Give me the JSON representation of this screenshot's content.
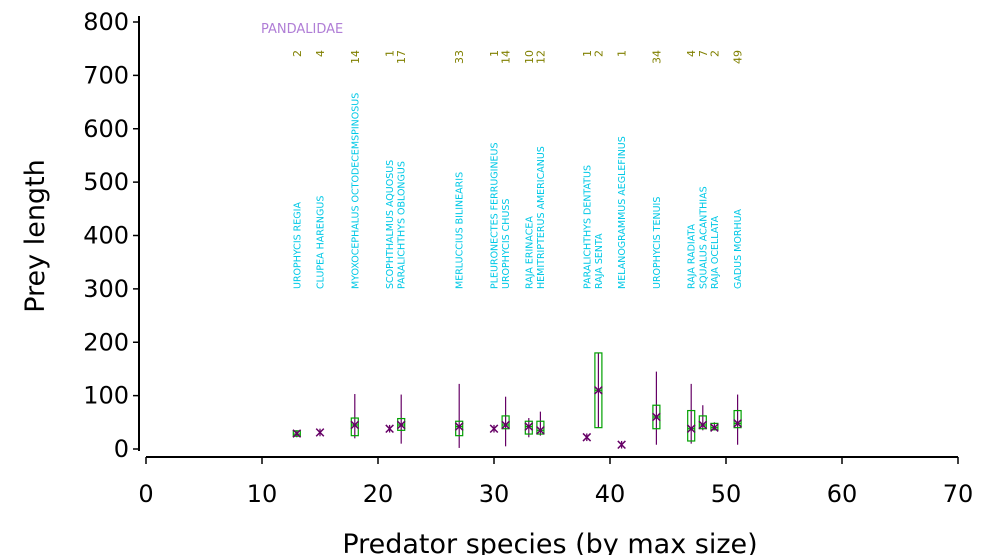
{
  "chart_data": {
    "type": "boxplot",
    "title": "PANDALIDAE",
    "xlabel": "Predator species (by max size)",
    "ylabel": "Prey length",
    "xlim": [
      0,
      70
    ],
    "ylim": [
      0,
      800
    ],
    "xticks": [
      0,
      10,
      20,
      30,
      40,
      50,
      60,
      70
    ],
    "yticks": [
      0,
      100,
      200,
      300,
      400,
      500,
      600,
      700,
      800
    ],
    "grid": false,
    "colors": {
      "box": "#00a000",
      "whisker": "#660066",
      "mean": "#660066",
      "species_label": "#00c8e6",
      "count_label": "#808000",
      "title": "#b07ed6",
      "axis": "#000000"
    },
    "species": [
      {
        "x": 13,
        "name": "UROPHYCIS REGIA",
        "n": "2",
        "low": 22,
        "q1": 24,
        "median": 28,
        "q3": 34,
        "high": 35,
        "mean": 29,
        "box": true
      },
      {
        "x": 15,
        "name": "CLUPEA HARENGUS",
        "n": "4",
        "low": 28,
        "q1": 28,
        "median": 31,
        "q3": 33,
        "high": 34,
        "mean": 31,
        "box": false
      },
      {
        "x": 18,
        "name": "MYOXOCEPHALUS OCTODECEMSPINOSUS",
        "n": "14",
        "low": 20,
        "q1": 25,
        "median": 45,
        "q3": 58,
        "high": 103,
        "mean": 45,
        "box": true
      },
      {
        "x": 21,
        "name": "SCOPHTHALMUS AQUOSUS",
        "n": "1",
        "low": 38,
        "q1": 38,
        "median": 38,
        "q3": 38,
        "high": 38,
        "mean": 38,
        "box": false
      },
      {
        "x": 22,
        "name": "PARALICHTHYS OBLONGUS",
        "n": "17",
        "low": 10,
        "q1": 35,
        "median": 45,
        "q3": 57,
        "high": 102,
        "mean": 45,
        "box": true
      },
      {
        "x": 27,
        "name": "MERLUCCIUS BILINEARIS",
        "n": "33",
        "low": 2,
        "q1": 25,
        "median": 42,
        "q3": 52,
        "high": 122,
        "mean": 42,
        "box": true
      },
      {
        "x": 30,
        "name": "PLEURONECTES FERRUGINEUS",
        "n": "1",
        "low": 38,
        "q1": 38,
        "median": 38,
        "q3": 38,
        "high": 38,
        "mean": 38,
        "box": false
      },
      {
        "x": 31,
        "name": "UROPHYCIS CHUSS",
        "n": "14",
        "low": 5,
        "q1": 38,
        "median": 45,
        "q3": 62,
        "high": 98,
        "mean": 45,
        "box": true
      },
      {
        "x": 33,
        "name": "RAJA ERINACEA",
        "n": "10",
        "low": 22,
        "q1": 28,
        "median": 42,
        "q3": 52,
        "high": 58,
        "mean": 42,
        "box": true
      },
      {
        "x": 34,
        "name": "HEMITRIPTERUS AMERICANUS",
        "n": "12",
        "low": 25,
        "q1": 28,
        "median": 35,
        "q3": 52,
        "high": 70,
        "mean": 35,
        "box": true
      },
      {
        "x": 38,
        "name": "PARALICHTHYS DENTATUS",
        "n": "1",
        "low": 22,
        "q1": 22,
        "median": 22,
        "q3": 22,
        "high": 22,
        "mean": 22,
        "box": false
      },
      {
        "x": 39,
        "name": "RAJA SENTA",
        "n": "2",
        "low": 40,
        "q1": 40,
        "median": 110,
        "q3": 180,
        "high": 180,
        "mean": 110,
        "box": true
      },
      {
        "x": 41,
        "name": "MELANOGRAMMUS AEGLEFINUS",
        "n": "1",
        "low": 8,
        "q1": 8,
        "median": 8,
        "q3": 8,
        "high": 8,
        "mean": 8,
        "box": false
      },
      {
        "x": 44,
        "name": "UROPHYCIS TENUIS",
        "n": "34",
        "low": 8,
        "q1": 38,
        "median": 60,
        "q3": 82,
        "high": 145,
        "mean": 60,
        "box": true
      },
      {
        "x": 47,
        "name": "RAJA RADIATA",
        "n": "4",
        "low": 10,
        "q1": 15,
        "median": 38,
        "q3": 72,
        "high": 122,
        "mean": 38,
        "box": true
      },
      {
        "x": 48,
        "name": "SQUALUS ACANTHIAS",
        "n": "7",
        "low": 35,
        "q1": 38,
        "median": 45,
        "q3": 62,
        "high": 82,
        "mean": 45,
        "box": true
      },
      {
        "x": 49,
        "name": "RAJA OCELLATA",
        "n": "2",
        "low": 35,
        "q1": 36,
        "median": 40,
        "q3": 48,
        "high": 50,
        "mean": 40,
        "box": true
      },
      {
        "x": 51,
        "name": "GADUS MORHUA",
        "n": "49",
        "low": 8,
        "q1": 40,
        "median": 48,
        "q3": 72,
        "high": 102,
        "mean": 48,
        "box": true
      }
    ]
  }
}
